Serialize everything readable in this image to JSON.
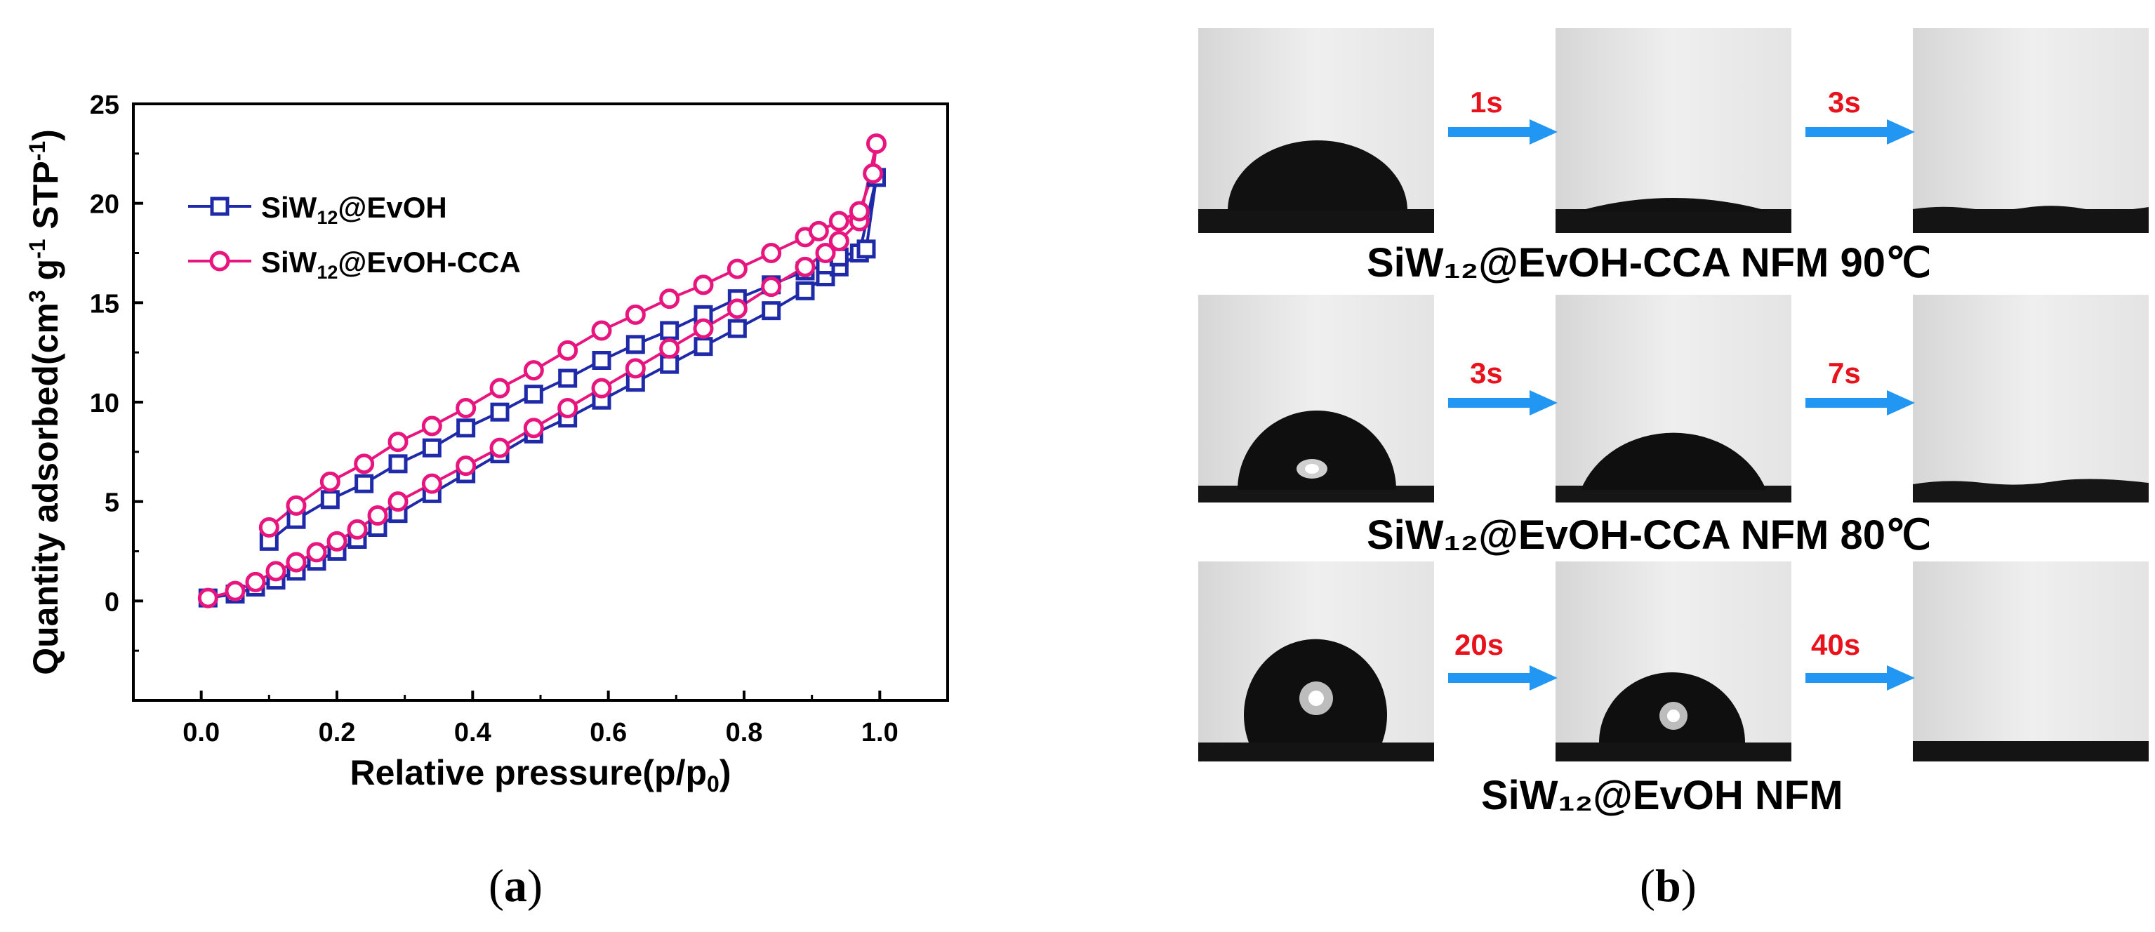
{
  "colors": {
    "series1": "#1e2aa8",
    "series2": "#e8157f",
    "arrow": "#2196f3",
    "time_label": "#e8121c",
    "droplet": "#111111"
  },
  "panel_a": {
    "label_open": "(",
    "label_letter": "a",
    "label_close": ")"
  },
  "panel_b": {
    "label_open": "(",
    "label_letter": "b",
    "label_close": ")",
    "rows": [
      {
        "caption": "SiW₁₂@EvOH-CCA NFM 90℃",
        "time1": "1s",
        "time2": "3s"
      },
      {
        "caption": "SiW₁₂@EvOH-CCA NFM 80℃",
        "time1": "3s",
        "time2": "7s"
      },
      {
        "caption": "SiW₁₂@EvOH NFM",
        "time1": "20s",
        "time2": "40s"
      }
    ]
  },
  "chart_data": {
    "type": "line",
    "title": "",
    "xlabel": "Relative pressure(p/p0)",
    "ylabel": "Quantity adsorbed(cm3 g-1 STP-1)",
    "xlim": [
      -0.1,
      1.1
    ],
    "ylim": [
      -5,
      25
    ],
    "xticks": [
      "0.0",
      "0.2",
      "0.4",
      "0.6",
      "0.8",
      "1.0"
    ],
    "yticks": [
      "0",
      "5",
      "10",
      "15",
      "20",
      "25"
    ],
    "legend": [
      "SiW12@EvOH",
      "SiW12@EvOH-CCA"
    ],
    "legend_position": "top-left",
    "series": [
      {
        "name": "SiW12@EvOH",
        "marker": "square",
        "adsorption_x": [
          0.01,
          0.05,
          0.08,
          0.11,
          0.14,
          0.17,
          0.2,
          0.23,
          0.26,
          0.29,
          0.34,
          0.39,
          0.44,
          0.49,
          0.54,
          0.59,
          0.64,
          0.69,
          0.74,
          0.79,
          0.84,
          0.89,
          0.92,
          0.94,
          0.97,
          0.995
        ],
        "adsorption_y": [
          0.15,
          0.35,
          0.7,
          1.05,
          1.5,
          2.0,
          2.5,
          3.1,
          3.7,
          4.4,
          5.4,
          6.4,
          7.4,
          8.4,
          9.2,
          10.1,
          11.0,
          11.9,
          12.8,
          13.7,
          14.6,
          15.6,
          16.3,
          16.8,
          17.5,
          21.3
        ],
        "desorption_x": [
          0.1,
          0.14,
          0.19,
          0.24,
          0.29,
          0.34,
          0.39,
          0.44,
          0.49,
          0.54,
          0.59,
          0.64,
          0.69,
          0.74,
          0.79,
          0.84,
          0.89,
          0.92,
          0.94,
          0.98
        ],
        "desorption_y": [
          3.0,
          4.1,
          5.1,
          5.9,
          6.9,
          7.7,
          8.7,
          9.5,
          10.4,
          11.2,
          12.1,
          12.9,
          13.6,
          14.4,
          15.2,
          15.9,
          16.6,
          16.9,
          17.3,
          17.7
        ]
      },
      {
        "name": "SiW12@EvOH-CCA",
        "marker": "circle",
        "adsorption_x": [
          0.01,
          0.05,
          0.08,
          0.11,
          0.14,
          0.17,
          0.2,
          0.23,
          0.26,
          0.29,
          0.34,
          0.39,
          0.44,
          0.49,
          0.54,
          0.59,
          0.64,
          0.69,
          0.74,
          0.79,
          0.84,
          0.89,
          0.92,
          0.94,
          0.97,
          0.995
        ],
        "adsorption_y": [
          0.15,
          0.5,
          0.95,
          1.5,
          1.95,
          2.45,
          3.0,
          3.6,
          4.3,
          5.0,
          5.9,
          6.8,
          7.7,
          8.7,
          9.7,
          10.7,
          11.7,
          12.7,
          13.7,
          14.7,
          15.8,
          16.8,
          17.5,
          18.1,
          19.1,
          23.0
        ],
        "desorption_x": [
          0.1,
          0.14,
          0.19,
          0.24,
          0.29,
          0.34,
          0.39,
          0.44,
          0.49,
          0.54,
          0.59,
          0.64,
          0.69,
          0.74,
          0.79,
          0.84,
          0.89,
          0.91,
          0.94,
          0.97,
          0.99
        ],
        "desorption_y": [
          3.7,
          4.8,
          6.0,
          6.9,
          8.0,
          8.8,
          9.7,
          10.7,
          11.6,
          12.6,
          13.6,
          14.4,
          15.2,
          15.9,
          16.7,
          17.5,
          18.3,
          18.6,
          19.1,
          19.6,
          21.5
        ]
      }
    ]
  }
}
